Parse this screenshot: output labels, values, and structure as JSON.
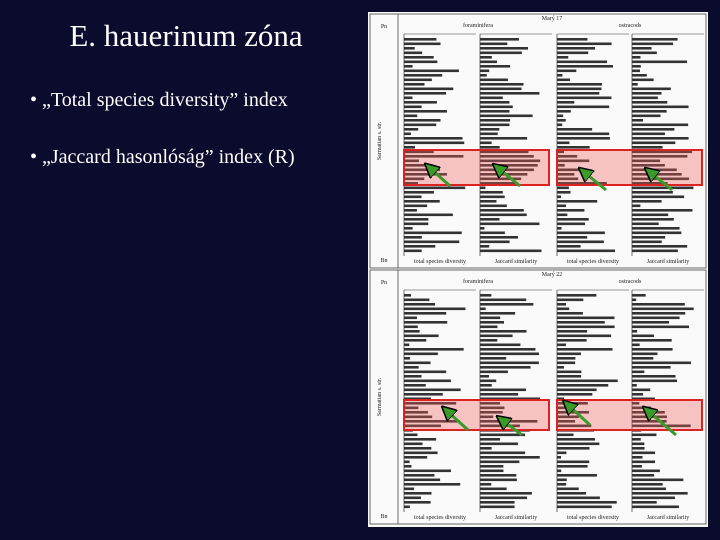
{
  "slide": {
    "title": "E. hauerinum zóna",
    "bullets": [
      "• „Total species diversity” index",
      "• „Jaccard hasonlóság” index (R)"
    ]
  },
  "figure": {
    "panels": [
      {
        "title": "Marý 17",
        "groups": [
          "foraminifera",
          "ostracods"
        ],
        "columns": [
          "total species diversity",
          "Jaccard similarity",
          "total species diversity",
          "Jaccard similarity"
        ],
        "strata": [
          "Pn",
          "Sarmatian s. str.",
          "Bn"
        ]
      },
      {
        "title": "Marý 22",
        "groups": [
          "foraminifera",
          "ostracods"
        ],
        "columns": [
          "total species diversity",
          "Jaccard similarity",
          "total species diversity",
          "Jaccard similarity"
        ],
        "strata": [
          "Pn",
          "Sarmatian s. str.",
          "Bn"
        ]
      }
    ]
  }
}
